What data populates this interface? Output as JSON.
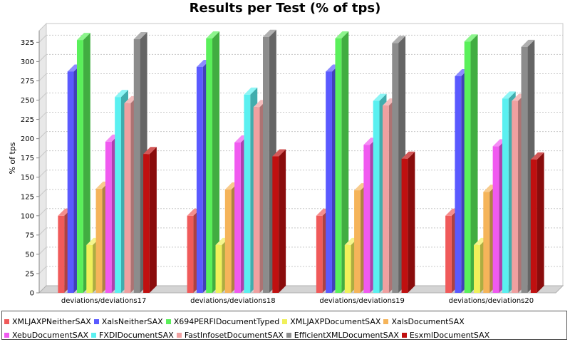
{
  "chart_data": {
    "type": "bar",
    "title": "Results per Test (% of tps)",
    "xlabel": "",
    "ylabel": "% of tps",
    "ylim": [
      0,
      340
    ],
    "yticks": [
      0,
      25,
      50,
      75,
      100,
      125,
      150,
      175,
      200,
      225,
      250,
      275,
      300,
      325
    ],
    "grid": true,
    "legend_position": "bottom",
    "style": "3d",
    "categories": [
      "deviations/deviations17",
      "deviations/deviations18",
      "deviations/deviations19",
      "deviations/deviations20"
    ],
    "series": [
      {
        "name": "XMLJAXPNeitherSAX",
        "color": "#f05a5a",
        "values": [
          100,
          100,
          100,
          100
        ]
      },
      {
        "name": "XalsNeitherSAX",
        "color": "#5a5aff",
        "values": [
          287,
          293,
          287,
          281
        ]
      },
      {
        "name": "X694PERFIDocumentTyped",
        "color": "#5af05a",
        "values": [
          328,
          330,
          330,
          326
        ]
      },
      {
        "name": "XMLJAXPDocumentSAX",
        "color": "#f0f05a",
        "values": [
          62,
          62,
          62,
          62
        ]
      },
      {
        "name": "XalsDocumentSAX",
        "color": "#f5b45a",
        "values": [
          135,
          134,
          133,
          131
        ]
      },
      {
        "name": "XebuDocumentSAX",
        "color": "#f05af0",
        "values": [
          196,
          195,
          192,
          190
        ]
      },
      {
        "name": "FXDIDocumentSAX",
        "color": "#5af0f0",
        "values": [
          254,
          257,
          249,
          252
        ]
      },
      {
        "name": "FastInfosetDocumentSAX",
        "color": "#f0a0a0",
        "values": [
          246,
          241,
          243,
          249
        ]
      },
      {
        "name": "EfficientXMLDocumentSAX",
        "color": "#8c8c8c",
        "values": [
          329,
          332,
          324,
          319
        ]
      },
      {
        "name": "EsxmlDocumentSAX",
        "color": "#c01010",
        "values": [
          180,
          177,
          174,
          173
        ]
      }
    ]
  }
}
